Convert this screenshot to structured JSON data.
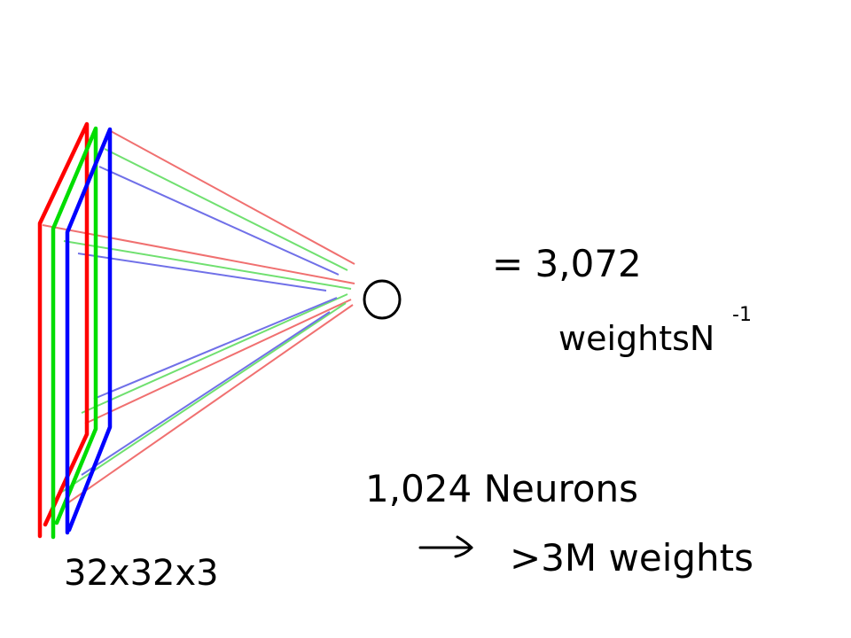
{
  "colors": {
    "red": "#ff0000",
    "green": "#00dd00",
    "blue": "#0000ff",
    "light_red": "#f07070",
    "light_green": "#70e070",
    "light_blue": "#7070e8",
    "ink": "#000000",
    "background": "#ffffff"
  },
  "layers": [
    {
      "name": "red-channel-plane",
      "color_key": "red"
    },
    {
      "name": "green-channel-plane",
      "color_key": "green"
    },
    {
      "name": "blue-channel-plane",
      "color_key": "blue"
    }
  ],
  "input_label": "32x32x3",
  "equation": {
    "equals": "= 3,072",
    "weights_prefix": "weights",
    "weights_symbol": "N",
    "weights_exponent": "-1"
  },
  "neurons_label": "1,024 Neurons",
  "arrow_symbol": "→",
  "total_weights_label": ">3M weights"
}
